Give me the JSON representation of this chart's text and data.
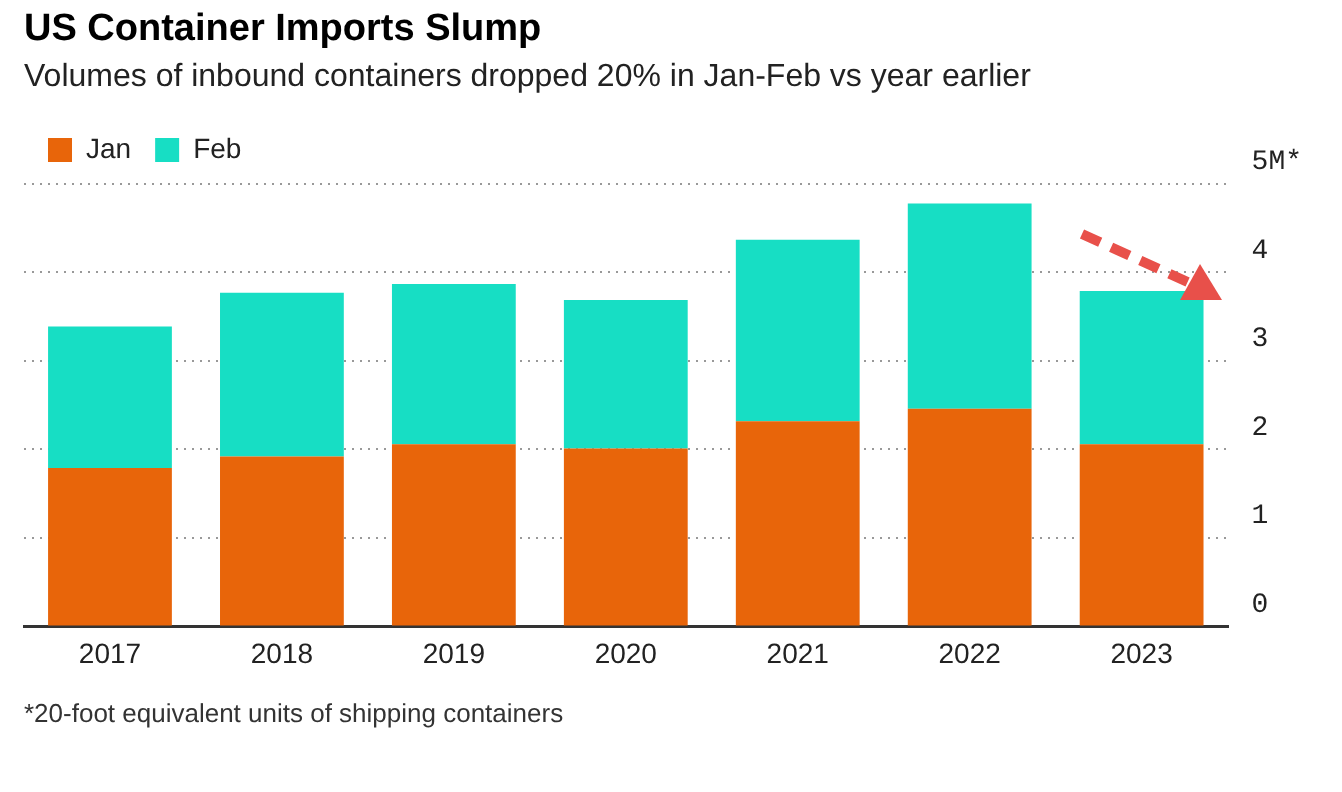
{
  "chart_data": {
    "type": "bar",
    "title": "US Container Imports Slump",
    "subtitle": "Volumes of inbound containers dropped 20% in Jan-Feb vs year earlier",
    "categories": [
      "2017",
      "2018",
      "2019",
      "2020",
      "2021",
      "2022",
      "2023"
    ],
    "series": [
      {
        "name": "Jan",
        "color": "#e8650a",
        "values": [
          1.79,
          1.92,
          2.06,
          2.01,
          2.32,
          2.46,
          2.06
        ]
      },
      {
        "name": "Feb",
        "color": "#17dec4",
        "values": [
          1.6,
          1.85,
          1.81,
          1.68,
          2.05,
          2.32,
          1.73
        ]
      }
    ],
    "stacked": true,
    "ylim": [
      0,
      5
    ],
    "yticks": [
      0,
      1,
      2,
      3,
      4,
      {
        "value": 5,
        "label": "5M*"
      }
    ],
    "grid": "y",
    "legend": "top left",
    "annotations": [
      "*20-foot equivalent units of shipping containers"
    ]
  }
}
